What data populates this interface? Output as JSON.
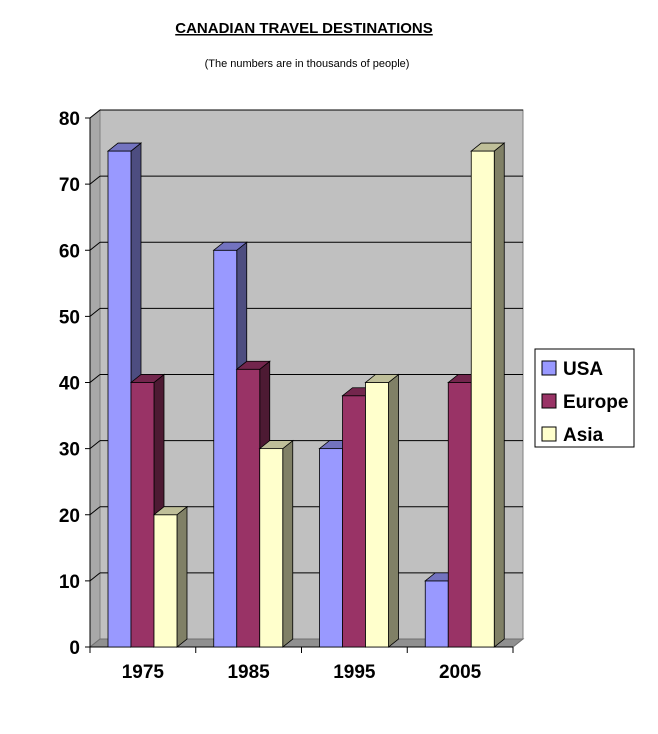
{
  "chart_data": {
    "type": "bar",
    "title": "CANADIAN TRAVEL DESTINATIONS",
    "subtitle": "(The numbers are in thousands of people)",
    "categories": [
      "1975",
      "1985",
      "1995",
      "2005"
    ],
    "series": [
      {
        "name": "USA",
        "values": [
          75,
          60,
          30,
          10
        ],
        "color": "#9999ff"
      },
      {
        "name": "Europe",
        "values": [
          40,
          42,
          38,
          40
        ],
        "color": "#993366"
      },
      {
        "name": "Asia",
        "values": [
          20,
          30,
          40,
          75
        ],
        "color": "#ffffcc"
      }
    ],
    "ylim": [
      0,
      80
    ],
    "yticks": [
      "0",
      "10",
      "20",
      "30",
      "40",
      "50",
      "60",
      "70",
      "80"
    ],
    "grid": true,
    "legend": "right",
    "style": "3d"
  }
}
